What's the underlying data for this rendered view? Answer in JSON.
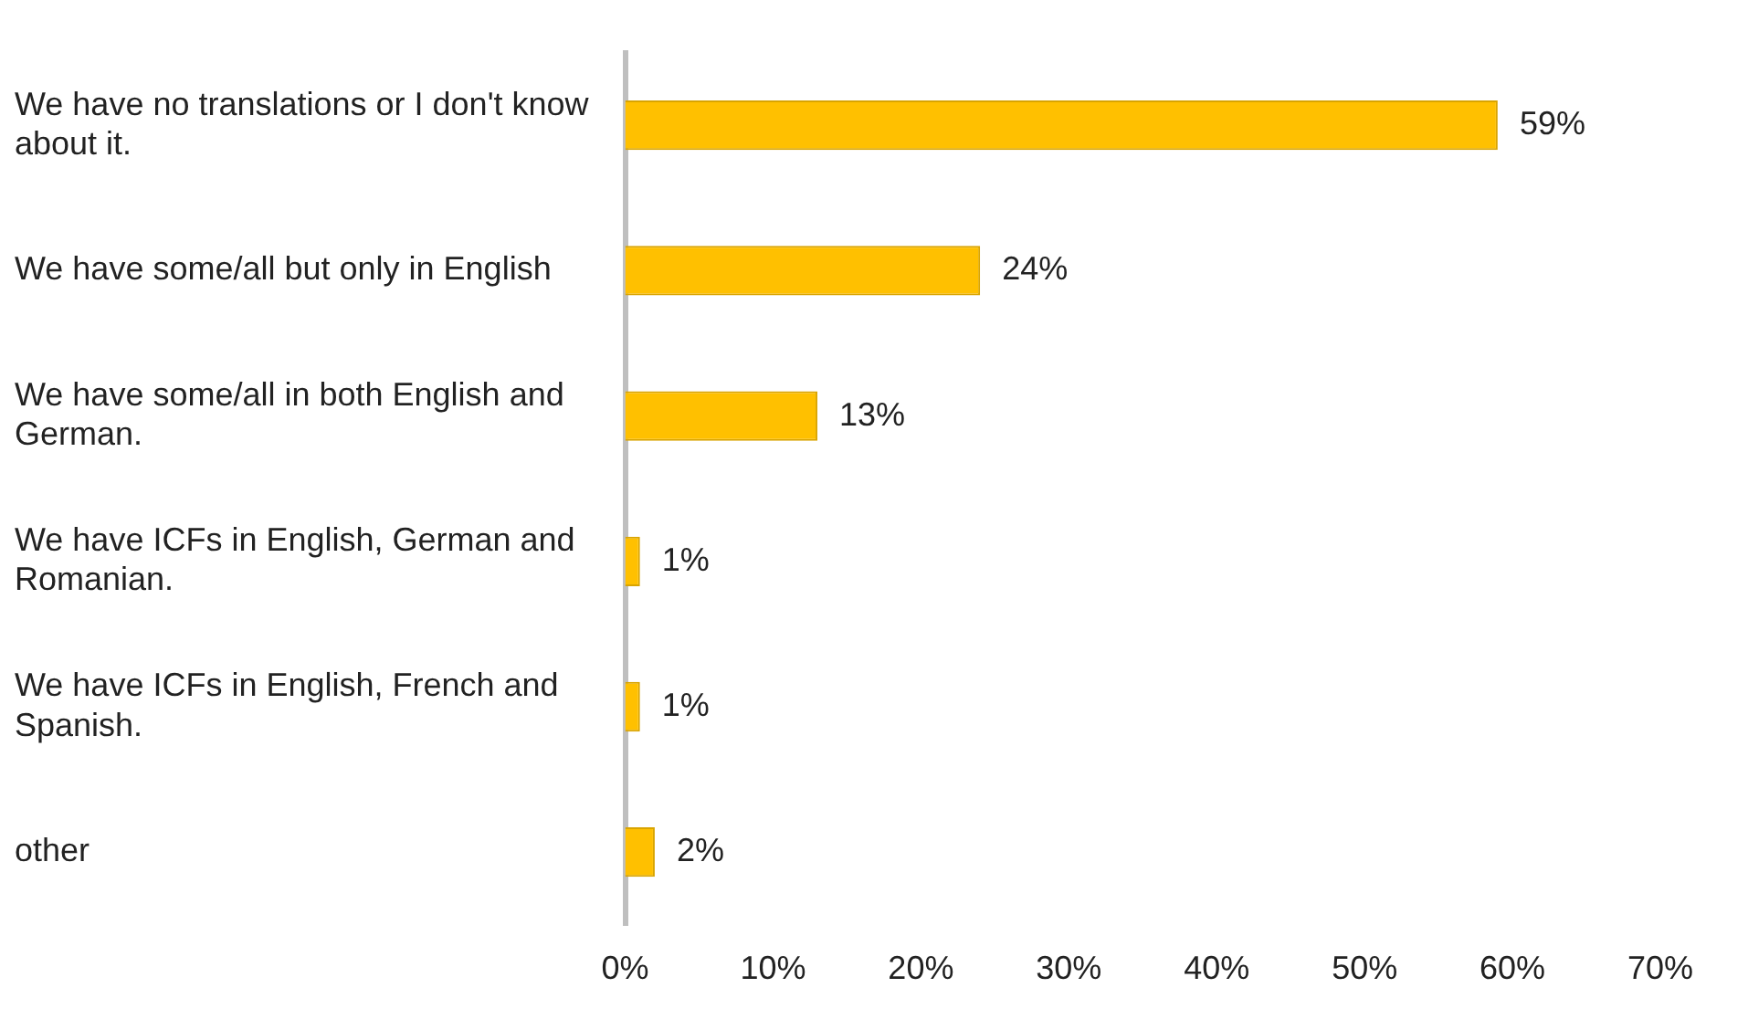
{
  "chart_data": {
    "type": "bar",
    "orientation": "horizontal",
    "categories": [
      "We have no translations or I don't know about it.",
      "We have some/all but only in English",
      "We have some/all in both English and German.",
      "We have ICFs in English, German and Romanian.",
      "We have ICFs in English, French and Spanish.",
      "other"
    ],
    "values": [
      59,
      24,
      13,
      1,
      1,
      2
    ],
    "value_labels": [
      "59%",
      "24%",
      "13%",
      "1%",
      "1%",
      "2%"
    ],
    "color": "#ffc000",
    "xlim": [
      0,
      70
    ],
    "xticks": [
      {
        "value": 0,
        "label": "0%"
      },
      {
        "value": 10,
        "label": "10%"
      },
      {
        "value": 20,
        "label": "20%"
      },
      {
        "value": 30,
        "label": "30%"
      },
      {
        "value": 40,
        "label": "40%"
      },
      {
        "value": 50,
        "label": "50%"
      },
      {
        "value": 60,
        "label": "60%"
      },
      {
        "value": 70,
        "label": "70%"
      }
    ],
    "grid": false,
    "legend": false
  }
}
